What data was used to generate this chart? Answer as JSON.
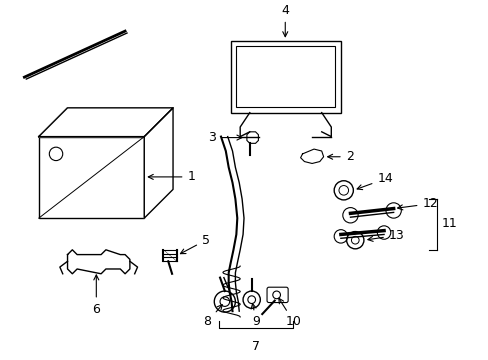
{
  "background_color": "#ffffff",
  "line_color": "#000000",
  "lw": 1.0
}
